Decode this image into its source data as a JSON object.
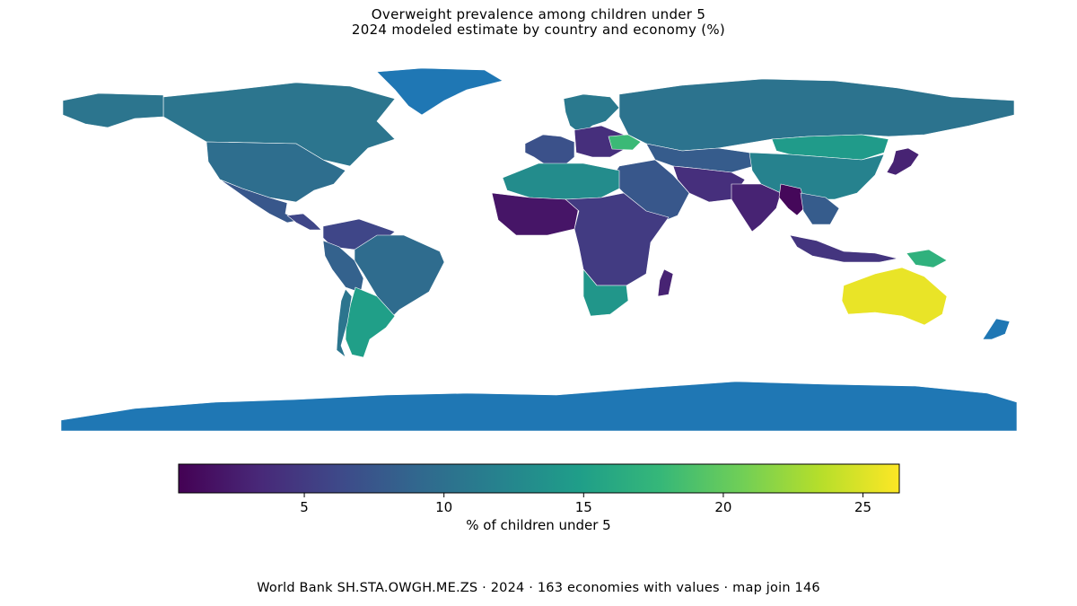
{
  "title": "Overweight prevalence among children under 5",
  "subtitle": "2024 modeled estimate by country and economy (%)",
  "colorbar": {
    "label": "% of children under 5",
    "min": 0.5,
    "max": 26.3,
    "ticks": [
      5,
      10,
      15,
      20,
      25
    ],
    "colormap": "viridis"
  },
  "colors": {
    "no_data": "#1f77b4",
    "viridis_stops": [
      "#440154",
      "#482878",
      "#3e4989",
      "#31688e",
      "#26828e",
      "#1f9e89",
      "#35b779",
      "#6ece58",
      "#b5de2b",
      "#fde725"
    ]
  },
  "source_note": "World Bank SH.STA.OWGH.ME.ZS · 2024 · 163 economies with values · map join 146",
  "regions": [
    {
      "name": "Canada",
      "value": 10.5
    },
    {
      "name": "Alaska",
      "value": 10.5
    },
    {
      "name": "United States of America",
      "value": 9.8
    },
    {
      "name": "Mexico",
      "value": 7.5
    },
    {
      "name": "Central America",
      "value": 6.0
    },
    {
      "name": "Colombia & Venezuela",
      "value": 6.0
    },
    {
      "name": "Brazil",
      "value": 9.5
    },
    {
      "name": "Peru & Bolivia",
      "value": 8.5
    },
    {
      "name": "Argentina",
      "value": 15.0
    },
    {
      "name": "Chile",
      "value": 10.5
    },
    {
      "name": "Western Europe",
      "value": 7.0
    },
    {
      "name": "Scandinavia",
      "value": 11.0
    },
    {
      "name": "Eastern Europe",
      "value": 4.0
    },
    {
      "name": "Ukraine",
      "value": 18.0
    },
    {
      "name": "Russia",
      "value": 10.3
    },
    {
      "name": "Kazakhstan & Central Asia",
      "value": 8.0
    },
    {
      "name": "Mongolia & North China",
      "value": 14.5
    },
    {
      "name": "China",
      "value": 12.0
    },
    {
      "name": "Middle East",
      "value": 7.5
    },
    {
      "name": "Iran & Afghanistan",
      "value": 4.0
    },
    {
      "name": "India",
      "value": 3.0
    },
    {
      "name": "Myanmar",
      "value": 1.0
    },
    {
      "name": "Southeast Asia",
      "value": 8.0
    },
    {
      "name": "Japan",
      "value": 3.0
    },
    {
      "name": "Indonesia",
      "value": 4.5
    },
    {
      "name": "Papua New Guinea",
      "value": 17.0
    },
    {
      "name": "North Africa",
      "value": 13.0
    },
    {
      "name": "West Africa",
      "value": 2.0
    },
    {
      "name": "Central & East Africa",
      "value": 5.0
    },
    {
      "name": "Southern Africa",
      "value": 14.0
    },
    {
      "name": "Madagascar",
      "value": 3.0
    },
    {
      "name": "Australia",
      "value": 25.5
    },
    {
      "name": "New Zealand",
      "value": null
    },
    {
      "name": "Greenland",
      "value": null
    },
    {
      "name": "Antarctica",
      "value": null
    }
  ]
}
